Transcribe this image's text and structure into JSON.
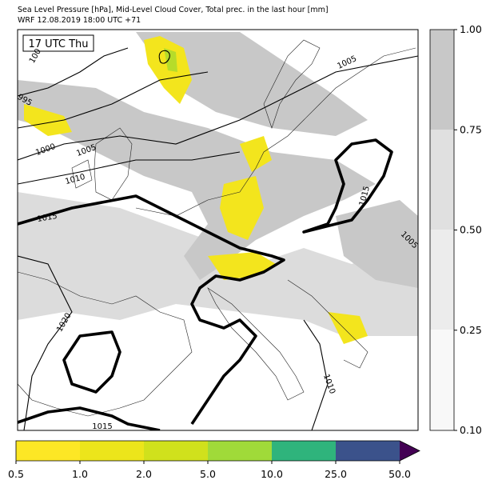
{
  "header": {
    "title": "Sea Level Pressure [hPa], Mid-Level Cloud Cover, Total prec. in the last hour [mm]",
    "subtitle": "WRF 12.08.2019 18:00 UTC +71"
  },
  "map": {
    "time_label": "17 UTC Thu",
    "contour_labels": [
      "100",
      "995",
      "1000",
      "1005",
      "1010",
      "1015",
      "1020",
      "1005",
      "1015",
      "1005",
      "1010",
      "1015"
    ]
  },
  "cloud_colorbar": {
    "ticks": [
      "0.10",
      "0.25",
      "0.50",
      "0.75",
      "1.00"
    ]
  },
  "precip_colorbar": {
    "ticks": [
      "0.5",
      "1.0",
      "2.0",
      "5.0",
      "10.0",
      "25.0",
      "50.0"
    ]
  }
}
